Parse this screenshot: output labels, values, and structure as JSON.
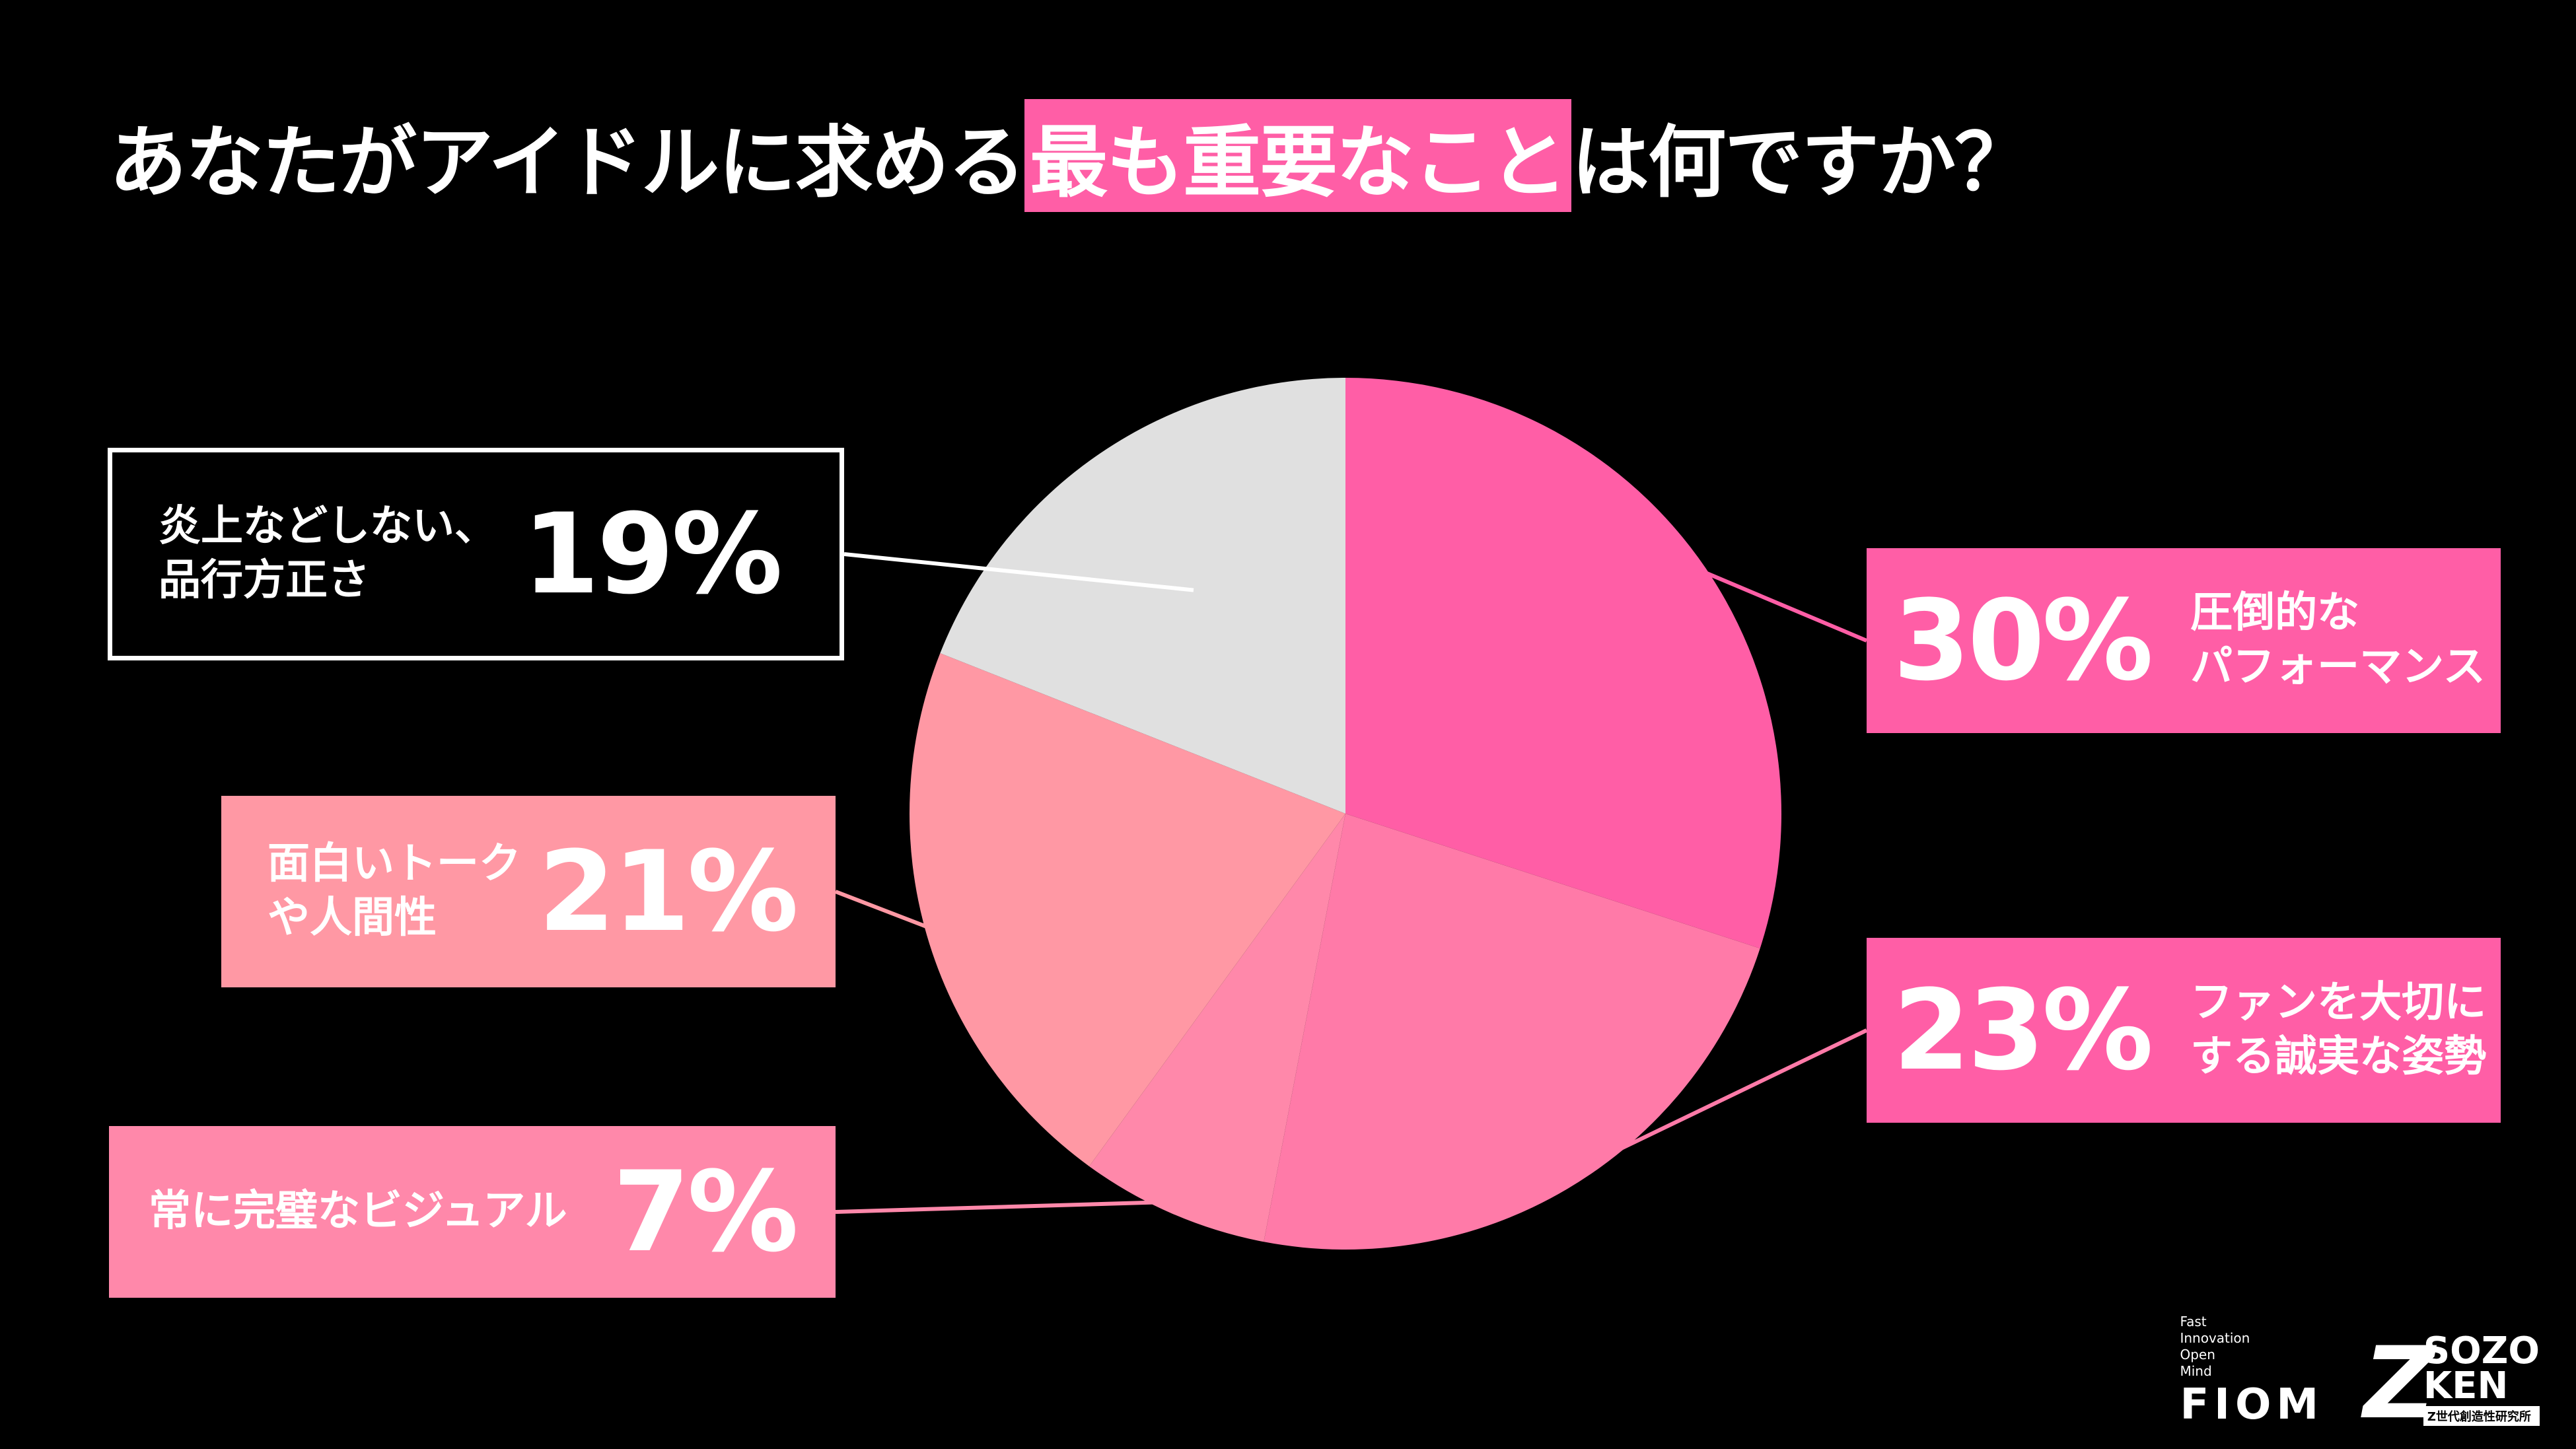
{
  "title": {
    "before": "あなたがアイドルに求める",
    "highlight": "最も重要なこと",
    "after": "は何ですか？"
  },
  "colors": {
    "background": "#000000",
    "accent": "#ff5ea6"
  },
  "chart_data": {
    "type": "pie",
    "title": "あなたがアイドルに求める最も重要なことは何ですか？",
    "start": "12 o'clock, clockwise",
    "slices": [
      {
        "label": "圧倒的なパフォーマンス",
        "label_lines": [
          "圧倒的な",
          "パフォーマンス"
        ],
        "value": 30,
        "value_label": "30%",
        "color": "#ff5ea6"
      },
      {
        "label": "ファンを大切にする誠実な姿勢",
        "label_lines": [
          "ファンを大切に",
          "する誠実な姿勢"
        ],
        "value": 23,
        "value_label": "23%",
        "color": "#ff7aa8"
      },
      {
        "label": "常に完璧なビジュアル",
        "label_lines": [
          "常に完璧なビジュアル"
        ],
        "value": 7,
        "value_label": "7%",
        "color": "#ff88aa"
      },
      {
        "label": "面白いトークや人間性",
        "label_lines": [
          "面白いトーク",
          "や人間性"
        ],
        "value": 21,
        "value_label": "21%",
        "color": "#ff98a4"
      },
      {
        "label": "炎上などしない、品行方正さ",
        "label_lines": [
          "炎上などしない、",
          "品行方正さ"
        ],
        "value": 19,
        "value_label": "19%",
        "color": "#e0e0e0"
      }
    ]
  },
  "logos": {
    "fiom_tagline": [
      "Fast",
      "Innovation",
      "Open",
      "Mind"
    ],
    "fiom_word": "FIOM",
    "sozo_z": "Z",
    "sozo_top": "SOZO",
    "sozo_bottom": "KEN",
    "sozo_sub": "Z世代創造性研究所"
  }
}
